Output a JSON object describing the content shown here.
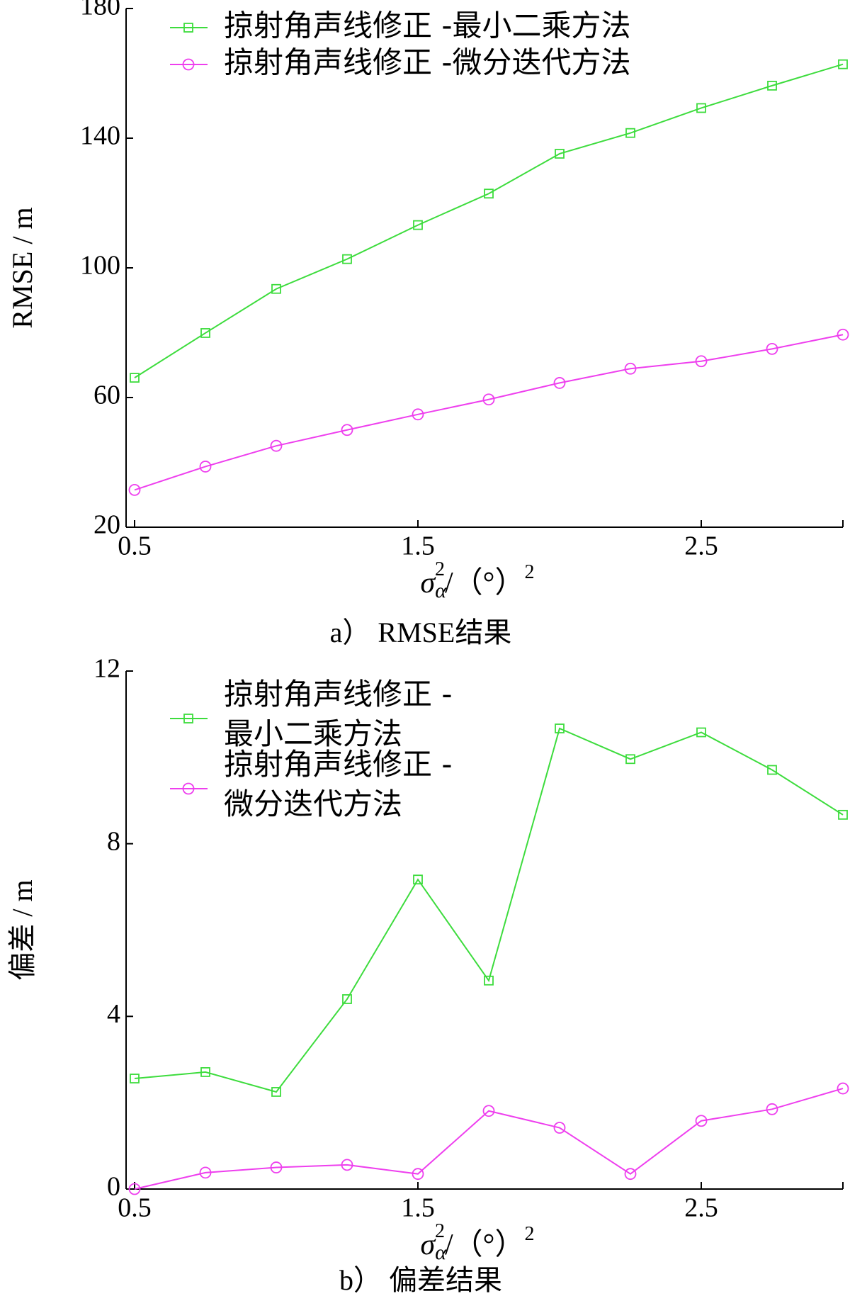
{
  "chart_data": [
    {
      "type": "line",
      "caption": "a） RMSE结果",
      "ylabel": "RMSE / m",
      "xlabel": {
        "base": "σ",
        "sub": "α",
        "sup": "2",
        "unit": "/（°）",
        "unit_sup": "2"
      },
      "x": [
        0.5,
        0.75,
        1.0,
        1.25,
        1.5,
        1.75,
        2.0,
        2.25,
        2.5,
        2.75,
        3.0
      ],
      "xlim": [
        0.47,
        3.0
      ],
      "xticks": [
        0.5,
        1.5,
        2.5
      ],
      "ylim": [
        20,
        180
      ],
      "yticks": [
        20,
        60,
        100,
        140,
        180
      ],
      "series": [
        {
          "name": "掠射角声线修正 -最小二乘方法",
          "color": "#3ddc3d",
          "marker": "square",
          "values": [
            66.1,
            79.9,
            93.5,
            102.7,
            113.2,
            122.9,
            135.2,
            141.6,
            149.3,
            156.2,
            162.8
          ]
        },
        {
          "name": "掠射角声线修正 -微分迭代方法",
          "color": "#ee3fee",
          "marker": "circle",
          "values": [
            31.5,
            38.7,
            45.1,
            50.0,
            54.8,
            59.4,
            64.5,
            68.9,
            71.2,
            75.0,
            79.4
          ]
        }
      ]
    },
    {
      "type": "line",
      "caption": "b） 偏差结果",
      "ylabel": "偏差 / m",
      "xlabel": {
        "base": "σ",
        "sub": "α",
        "sup": "2",
        "unit": "/（°）",
        "unit_sup": "2"
      },
      "x": [
        0.5,
        0.75,
        1.0,
        1.25,
        1.5,
        1.75,
        2.0,
        2.25,
        2.5,
        2.75,
        3.0
      ],
      "xlim": [
        0.47,
        3.0
      ],
      "xticks": [
        0.5,
        1.5,
        2.5
      ],
      "ylim": [
        0,
        12
      ],
      "yticks": [
        0,
        4,
        8,
        12
      ],
      "series": [
        {
          "name": "掠射角声线修正 -最小二乘方法",
          "color": "#3ddc3d",
          "marker": "square",
          "values": [
            2.56,
            2.71,
            2.25,
            4.4,
            7.17,
            4.83,
            10.67,
            9.96,
            10.58,
            9.71,
            8.67
          ]
        },
        {
          "name": "掠射角声线修正 -微分迭代方法",
          "color": "#ee3fee",
          "marker": "circle",
          "values": [
            0,
            0.38,
            0.5,
            0.56,
            0.35,
            1.81,
            1.42,
            0.35,
            1.58,
            1.85,
            2.33
          ]
        }
      ]
    }
  ]
}
